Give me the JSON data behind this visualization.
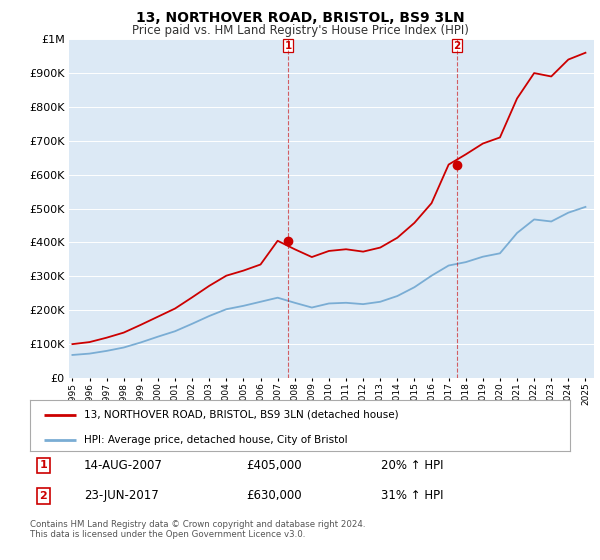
{
  "title": "13, NORTHOVER ROAD, BRISTOL, BS9 3LN",
  "subtitle": "Price paid vs. HM Land Registry's House Price Index (HPI)",
  "ytick_values": [
    0,
    100000,
    200000,
    300000,
    400000,
    500000,
    600000,
    700000,
    800000,
    900000,
    1000000
  ],
  "ylim": [
    0,
    1000000
  ],
  "xlim_start": 1994.8,
  "xlim_end": 2025.5,
  "xticks": [
    1995,
    1996,
    1997,
    1998,
    1999,
    2000,
    2001,
    2002,
    2003,
    2004,
    2005,
    2006,
    2007,
    2008,
    2009,
    2010,
    2011,
    2012,
    2013,
    2014,
    2015,
    2016,
    2017,
    2018,
    2019,
    2020,
    2021,
    2022,
    2023,
    2024,
    2025
  ],
  "background_color": "#dce9f5",
  "line_color_property": "#cc0000",
  "line_color_hpi": "#7aadd4",
  "transaction1_x": 2007.617,
  "transaction1_y": 405000,
  "transaction2_x": 2017.472,
  "transaction2_y": 630000,
  "legend_property_label": "13, NORTHOVER ROAD, BRISTOL, BS9 3LN (detached house)",
  "legend_hpi_label": "HPI: Average price, detached house, City of Bristol",
  "info1_num": "1",
  "info1_date": "14-AUG-2007",
  "info1_price": "£405,000",
  "info1_hpi": "20% ↑ HPI",
  "info2_num": "2",
  "info2_date": "23-JUN-2017",
  "info2_price": "£630,000",
  "info2_hpi": "31% ↑ HPI",
  "footer": "Contains HM Land Registry data © Crown copyright and database right 2024.\nThis data is licensed under the Open Government Licence v3.0.",
  "hpi_years": [
    1995,
    1996,
    1997,
    1998,
    1999,
    2000,
    2001,
    2002,
    2003,
    2004,
    2005,
    2006,
    2007,
    2008,
    2009,
    2010,
    2011,
    2012,
    2013,
    2014,
    2015,
    2016,
    2017,
    2018,
    2019,
    2020,
    2021,
    2022,
    2023,
    2024,
    2025
  ],
  "hpi_values": [
    68000,
    72000,
    80000,
    90000,
    105000,
    122000,
    138000,
    160000,
    183000,
    203000,
    213000,
    225000,
    237000,
    222000,
    208000,
    220000,
    222000,
    218000,
    225000,
    242000,
    268000,
    302000,
    332000,
    342000,
    358000,
    368000,
    428000,
    468000,
    462000,
    488000,
    505000
  ],
  "prop_years": [
    1995,
    1996,
    1997,
    1998,
    1999,
    2000,
    2001,
    2002,
    2003,
    2004,
    2005,
    2006,
    2007,
    2008,
    2009,
    2010,
    2011,
    2012,
    2013,
    2014,
    2015,
    2016,
    2017,
    2018,
    2019,
    2020,
    2021,
    2022,
    2023,
    2024,
    2025
  ],
  "prop_values": [
    100000,
    106000,
    119000,
    134000,
    157000,
    181000,
    205000,
    238000,
    272000,
    302000,
    317000,
    335000,
    405000,
    380000,
    357000,
    375000,
    380000,
    373000,
    385000,
    414000,
    458000,
    516000,
    630000,
    660000,
    692000,
    710000,
    825000,
    900000,
    890000,
    940000,
    960000
  ]
}
